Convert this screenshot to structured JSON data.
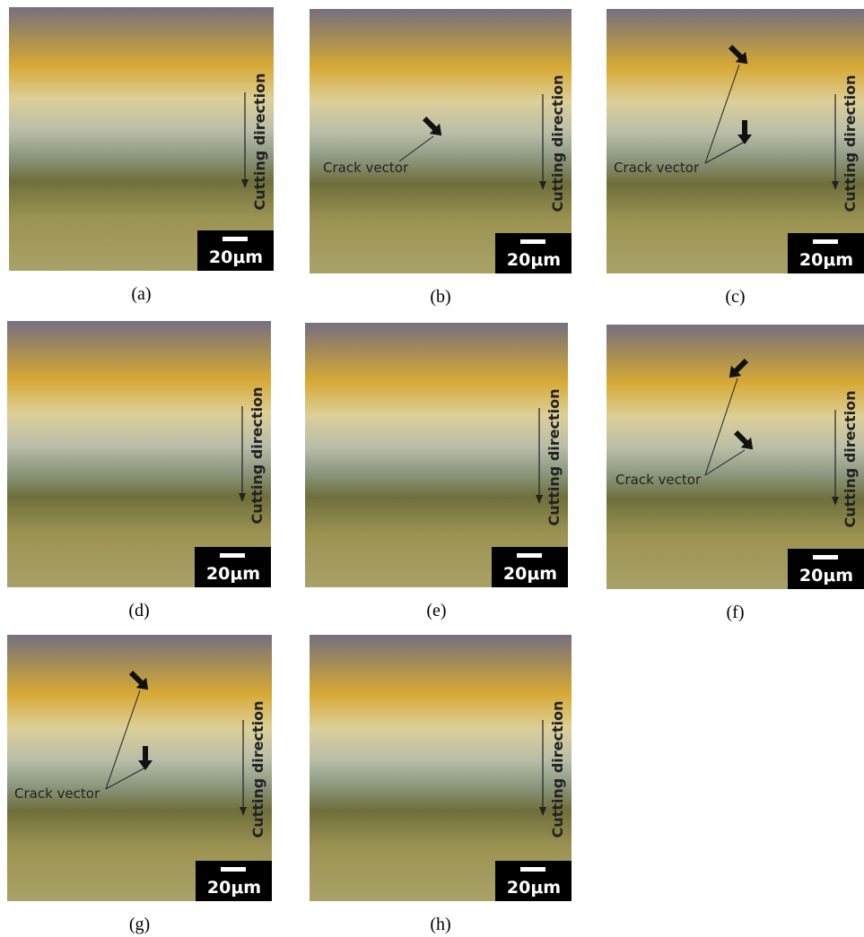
{
  "panels": [
    {
      "caption": "(a)",
      "direction": "Cutting direction",
      "scale": "20μm"
    },
    {
      "caption": "(b)",
      "direction": "Cutting direction",
      "scale": "20μm",
      "crack": "Crack vector"
    },
    {
      "caption": "(c)",
      "direction": "Cutting direction",
      "scale": "20μm",
      "crack": "Crack vector"
    },
    {
      "caption": "(d)",
      "direction": "Cutting direction",
      "scale": "20μm"
    },
    {
      "caption": "(e)",
      "direction": "Cutting direction",
      "scale": "20μm"
    },
    {
      "caption": "(f)",
      "direction": "Cutting direction",
      "scale": "20μm",
      "crack": "Crack vector"
    },
    {
      "caption": "(g)",
      "direction": "Cutting direction",
      "scale": "20μm",
      "crack": "Crack vector"
    },
    {
      "caption": "(h)",
      "direction": "Cutting direction",
      "scale": "20μm"
    }
  ]
}
